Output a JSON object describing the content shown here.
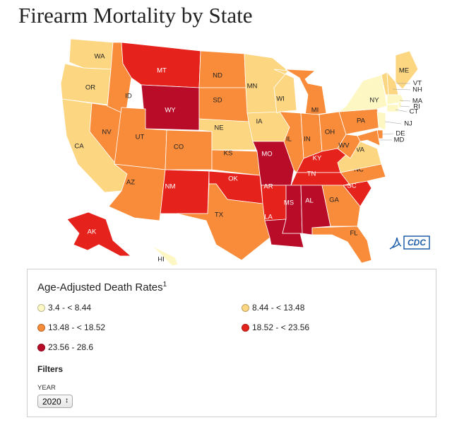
{
  "title": "Firearm Mortality by State",
  "legend": {
    "title": "Age-Adjusted Death Rates",
    "footnote": "1",
    "items": [
      {
        "label": "3.4 - < 8.44",
        "color": "#fdf7c4"
      },
      {
        "label": "8.44 - < 13.48",
        "color": "#fdd681"
      },
      {
        "label": "13.48 - < 18.52",
        "color": "#f98c3a"
      },
      {
        "label": "18.52 - < 23.56",
        "color": "#e5221c"
      },
      {
        "label": "23.56 - 28.6",
        "color": "#b80c28"
      }
    ]
  },
  "filters": {
    "heading": "Filters",
    "year_label": "YEAR",
    "year_value": "2020"
  },
  "logo": "CDC",
  "states": [
    {
      "abbr": "WA",
      "color": "#fdd681"
    },
    {
      "abbr": "OR",
      "color": "#fdd681"
    },
    {
      "abbr": "CA",
      "color": "#fdd681"
    },
    {
      "abbr": "NV",
      "color": "#f98c3a"
    },
    {
      "abbr": "ID",
      "color": "#f98c3a"
    },
    {
      "abbr": "MT",
      "color": "#e5221c"
    },
    {
      "abbr": "WY",
      "color": "#b80c28"
    },
    {
      "abbr": "UT",
      "color": "#f98c3a"
    },
    {
      "abbr": "AZ",
      "color": "#f98c3a"
    },
    {
      "abbr": "CO",
      "color": "#f98c3a"
    },
    {
      "abbr": "NM",
      "color": "#e5221c"
    },
    {
      "abbr": "ND",
      "color": "#f98c3a"
    },
    {
      "abbr": "SD",
      "color": "#f98c3a"
    },
    {
      "abbr": "NE",
      "color": "#fdd681"
    },
    {
      "abbr": "KS",
      "color": "#f98c3a"
    },
    {
      "abbr": "OK",
      "color": "#e5221c"
    },
    {
      "abbr": "TX",
      "color": "#f98c3a"
    },
    {
      "abbr": "MN",
      "color": "#fdd681"
    },
    {
      "abbr": "IA",
      "color": "#fdd681"
    },
    {
      "abbr": "MO",
      "color": "#b80c28"
    },
    {
      "abbr": "AR",
      "color": "#e5221c"
    },
    {
      "abbr": "LA",
      "color": "#b80c28"
    },
    {
      "abbr": "WI",
      "color": "#fdd681"
    },
    {
      "abbr": "IL",
      "color": "#f98c3a"
    },
    {
      "abbr": "MI",
      "color": "#f98c3a"
    },
    {
      "abbr": "IN",
      "color": "#f98c3a"
    },
    {
      "abbr": "OH",
      "color": "#f98c3a"
    },
    {
      "abbr": "KY",
      "color": "#e5221c"
    },
    {
      "abbr": "TN",
      "color": "#e5221c"
    },
    {
      "abbr": "MS",
      "color": "#b80c28"
    },
    {
      "abbr": "AL",
      "color": "#b80c28"
    },
    {
      "abbr": "GA",
      "color": "#f98c3a"
    },
    {
      "abbr": "FL",
      "color": "#f98c3a"
    },
    {
      "abbr": "SC",
      "color": "#e5221c"
    },
    {
      "abbr": "NC",
      "color": "#f98c3a"
    },
    {
      "abbr": "VA",
      "color": "#fdd681"
    },
    {
      "abbr": "WV",
      "color": "#f98c3a"
    },
    {
      "abbr": "PA",
      "color": "#f98c3a"
    },
    {
      "abbr": "NY",
      "color": "#fdf7c4"
    },
    {
      "abbr": "ME",
      "color": "#fdd681"
    },
    {
      "abbr": "VT",
      "color": "#fdd681"
    },
    {
      "abbr": "NH",
      "color": "#fdd681"
    },
    {
      "abbr": "MA",
      "color": "#fdf7c4"
    },
    {
      "abbr": "RI",
      "color": "#fdf7c4"
    },
    {
      "abbr": "CT",
      "color": "#fdf7c4"
    },
    {
      "abbr": "NJ",
      "color": "#fdf7c4"
    },
    {
      "abbr": "DE",
      "color": "#f98c3a"
    },
    {
      "abbr": "MD",
      "color": "#f98c3a"
    },
    {
      "abbr": "AK",
      "color": "#e5221c"
    },
    {
      "abbr": "HI",
      "color": "#fdf7c4"
    }
  ]
}
